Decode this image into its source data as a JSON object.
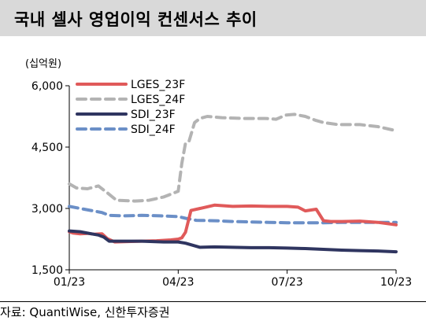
{
  "header": {
    "title": "국내 셀사 영업이익 컨센서스 추이"
  },
  "unit": "(십억원)",
  "source": "자료: QuantiWise, 신한투자증권",
  "chart_data": {
    "type": "line",
    "title": "국내 셀사 영업이익 컨센서스 추이",
    "ylabel": "(십억원)",
    "ylim": [
      1500,
      6000
    ],
    "yticks": [
      "6,000",
      "4,500",
      "3,000",
      "1,500"
    ],
    "ytick_values": [
      6000,
      4500,
      3000,
      1500
    ],
    "xticks": [
      "01/23",
      "04/23",
      "07/23",
      "10/23"
    ],
    "xtick_values": [
      0,
      3,
      6,
      9
    ],
    "xlim": [
      0,
      9
    ],
    "legend_position": "top",
    "series": [
      {
        "name": "LGES_23F",
        "color": "#e05a5a",
        "dash": "solid",
        "x": [
          0,
          0.1,
          0.3,
          0.5,
          0.7,
          0.9,
          1.05,
          1.25,
          1.6,
          2.0,
          2.4,
          2.8,
          3.0,
          3.1,
          3.2,
          3.35,
          3.6,
          4.0,
          4.5,
          5.0,
          5.5,
          6.0,
          6.3,
          6.5,
          6.8,
          7.0,
          7.2,
          7.5,
          8.0,
          8.5,
          9.0
        ],
        "y": [
          2430,
          2400,
          2380,
          2390,
          2370,
          2380,
          2260,
          2180,
          2190,
          2200,
          2210,
          2230,
          2250,
          2280,
          2420,
          2950,
          3000,
          3080,
          3050,
          3060,
          3050,
          3050,
          3030,
          2940,
          2980,
          2700,
          2680,
          2680,
          2690,
          2660,
          2600
        ]
      },
      {
        "name": "LGES_24F",
        "color": "#b3b3b3",
        "dash": "dash",
        "x": [
          0,
          0.2,
          0.5,
          0.8,
          1.05,
          1.3,
          1.8,
          2.2,
          2.6,
          2.8,
          3.0,
          3.1,
          3.2,
          3.3,
          3.45,
          3.6,
          3.8,
          4.2,
          4.8,
          5.4,
          5.7,
          5.95,
          6.2,
          6.5,
          6.8,
          7.0,
          7.4,
          8.0,
          8.5,
          9.0
        ],
        "y": [
          3600,
          3500,
          3480,
          3550,
          3380,
          3200,
          3180,
          3200,
          3280,
          3350,
          3420,
          4100,
          4600,
          4650,
          5100,
          5200,
          5250,
          5220,
          5200,
          5200,
          5180,
          5280,
          5300,
          5250,
          5150,
          5100,
          5050,
          5050,
          5000,
          4900
        ]
      },
      {
        "name": "SDI_23F",
        "color": "#2f3560",
        "dash": "solid",
        "x": [
          0,
          0.3,
          0.6,
          0.8,
          0.95,
          1.1,
          1.4,
          2.0,
          2.6,
          3.0,
          3.2,
          3.4,
          3.6,
          4.0,
          4.5,
          5.0,
          5.5,
          6.0,
          6.5,
          7.0,
          7.5,
          8.0,
          8.5,
          9.0
        ],
        "y": [
          2450,
          2430,
          2380,
          2350,
          2300,
          2200,
          2200,
          2200,
          2180,
          2180,
          2150,
          2100,
          2050,
          2060,
          2050,
          2040,
          2040,
          2030,
          2020,
          2000,
          1980,
          1970,
          1960,
          1940
        ]
      },
      {
        "name": "SDI_24F",
        "color": "#6b8fc7",
        "dash": "dash",
        "x": [
          0,
          0.3,
          0.6,
          0.9,
          1.1,
          1.5,
          2.0,
          2.5,
          3.0,
          3.2,
          3.5,
          4.0,
          4.5,
          5.0,
          5.5,
          6.0,
          6.5,
          7.0,
          7.5,
          8.0,
          8.5,
          9.0
        ],
        "y": [
          3050,
          3000,
          2950,
          2900,
          2830,
          2820,
          2830,
          2820,
          2800,
          2760,
          2710,
          2700,
          2680,
          2670,
          2660,
          2650,
          2650,
          2650,
          2660,
          2660,
          2660,
          2660
        ]
      }
    ]
  }
}
